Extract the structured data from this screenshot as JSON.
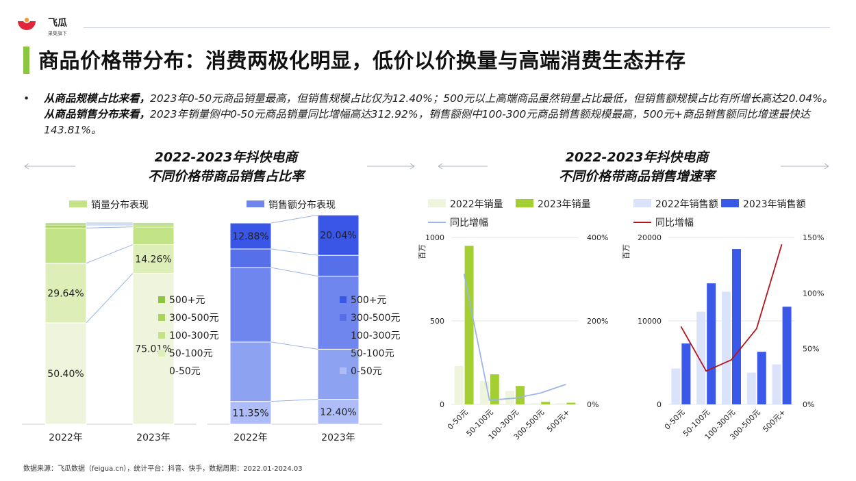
{
  "brand": {
    "name": "飞瓜",
    "tagline": "果集旗下"
  },
  "title": "商品价格带分布：消费两极化明显，低价以价换量与高端消费生态并存",
  "summary": {
    "bullet": "•",
    "part1_bold": "从商品规模占比来看，",
    "part1": "2023年0-50元商品销量最高，但销售规模占比仅为12.40%；500元以上高端商品虽然销量占比最低，但销售额规模占比有所增长高达20.04%。",
    "part2_bold": "从商品销售分布来看，",
    "part2": "2023年销量侧中0-50元商品销量同比增幅高达312.92%，销售额侧中100-300元商品销售额规模最高，500元+商品销售额同比增速最快达143.81%。"
  },
  "left_title": {
    "line1": "2022-2023年抖快电商",
    "line2": "不同价格带商品销售占比率"
  },
  "right_title": {
    "line1": "2022-2023年抖快电商",
    "line2": "不同价格带商品销售增速率"
  },
  "footer": "数据来源：飞瓜数据（feigua.cn），统计平台：抖音、快手，数据周期：2022.01-2024.03",
  "colors": {
    "accent_green": "#8cc63f",
    "volume_shades": [
      "#eef5dc",
      "#ddeeb8",
      "#c3e387",
      "#a9d35a",
      "#8cc63f"
    ],
    "sales_shades": [
      "#aebdf7",
      "#8ea2f2",
      "#6f86ee",
      "#5670ea",
      "#3a56e6"
    ],
    "bar_2022_volume": "#eef5dc",
    "bar_2023_volume": "#a4cf32",
    "bar_2022_sales": "#dbe3fb",
    "bar_2023_sales": "#3b59e8",
    "line_volume": "#9bb5e8",
    "line_sales": "#b3151b"
  },
  "chart_data": [
    {
      "type": "bar",
      "stacked": true,
      "percent": true,
      "legend_title": "销量分布表现",
      "categories": [
        "2022年",
        "2023年"
      ],
      "series": [
        {
          "name": "0-50元",
          "values": [
            50.4,
            75.01
          ]
        },
        {
          "name": "50-100元",
          "values": [
            29.64,
            14.26
          ]
        },
        {
          "name": "100-300元",
          "values": [
            17.5,
            8.8
          ]
        },
        {
          "name": "300-500元",
          "values": [
            1.5,
            1.0
          ]
        },
        {
          "name": "500+元",
          "values": [
            0.96,
            0.93
          ]
        }
      ],
      "data_labels": [
        {
          "category": "2022年",
          "series": "0-50元",
          "text": "50.40%"
        },
        {
          "category": "2022年",
          "series": "50-100元",
          "text": "29.64%"
        },
        {
          "category": "2023年",
          "series": "0-50元",
          "text": "75.01%"
        },
        {
          "category": "2023年",
          "series": "50-100元",
          "text": "14.26%"
        }
      ],
      "ylim": [
        0,
        100
      ]
    },
    {
      "type": "bar",
      "stacked": true,
      "percent": true,
      "legend_title": "销售额分布表现",
      "categories": [
        "2022年",
        "2023年"
      ],
      "series": [
        {
          "name": "0-50元",
          "values": [
            11.35,
            12.4
          ]
        },
        {
          "name": "50-100元",
          "values": [
            29.5,
            24.9
          ]
        },
        {
          "name": "100-300元",
          "values": [
            37.0,
            36.3
          ]
        },
        {
          "name": "300-500元",
          "values": [
            9.27,
            10.36
          ]
        },
        {
          "name": "500+元",
          "values": [
            12.88,
            20.04
          ]
        }
      ],
      "data_labels": [
        {
          "category": "2022年",
          "series": "0-50元",
          "text": "11.35%"
        },
        {
          "category": "2022年",
          "series": "500+元",
          "text": "12.88%"
        },
        {
          "category": "2023年",
          "series": "0-50元",
          "text": "12.40%"
        },
        {
          "category": "2023年",
          "series": "500+元",
          "text": "20.04%"
        }
      ],
      "ylim": [
        0,
        100
      ]
    },
    {
      "type": "bar",
      "combo_line": true,
      "categories": [
        "0-50元",
        "50-100元",
        "100-300元",
        "300-500元",
        "500元+"
      ],
      "y_unit": "百万",
      "ylim": [
        0,
        1000
      ],
      "y_ticks": [
        0,
        500,
        1000
      ],
      "y2lim": [
        0,
        4.0
      ],
      "y2_ticks": [
        "0%",
        "200%",
        "400%"
      ],
      "series": [
        {
          "name": "2022年销量",
          "values": [
            230,
            140,
            80,
            8,
            8
          ]
        },
        {
          "name": "2023年销量",
          "values": [
            950,
            180,
            110,
            15,
            10
          ]
        }
      ],
      "line": {
        "name": "同比增幅",
        "values": [
          3.1292,
          0.1,
          0.15,
          0.27,
          0.48
        ]
      }
    },
    {
      "type": "bar",
      "combo_line": true,
      "categories": [
        "0-50元",
        "50-100元",
        "100-300元",
        "300-500元",
        "500元+"
      ],
      "y_unit": "百万",
      "ylim": [
        0,
        20000
      ],
      "y_ticks": [
        0,
        10000,
        20000
      ],
      "y2lim": [
        0,
        1.5
      ],
      "y2_ticks": [
        "0%",
        "50%",
        "100%",
        "150%"
      ],
      "series": [
        {
          "name": "2022年销售额",
          "values": [
            4300,
            11100,
            13500,
            3800,
            4800
          ]
        },
        {
          "name": "2023年销售额",
          "values": [
            7300,
            14500,
            18600,
            6300,
            11700
          ]
        }
      ],
      "line": {
        "name": "同比增幅",
        "values": [
          0.7,
          0.3,
          0.4,
          0.68,
          1.4381
        ]
      }
    }
  ]
}
